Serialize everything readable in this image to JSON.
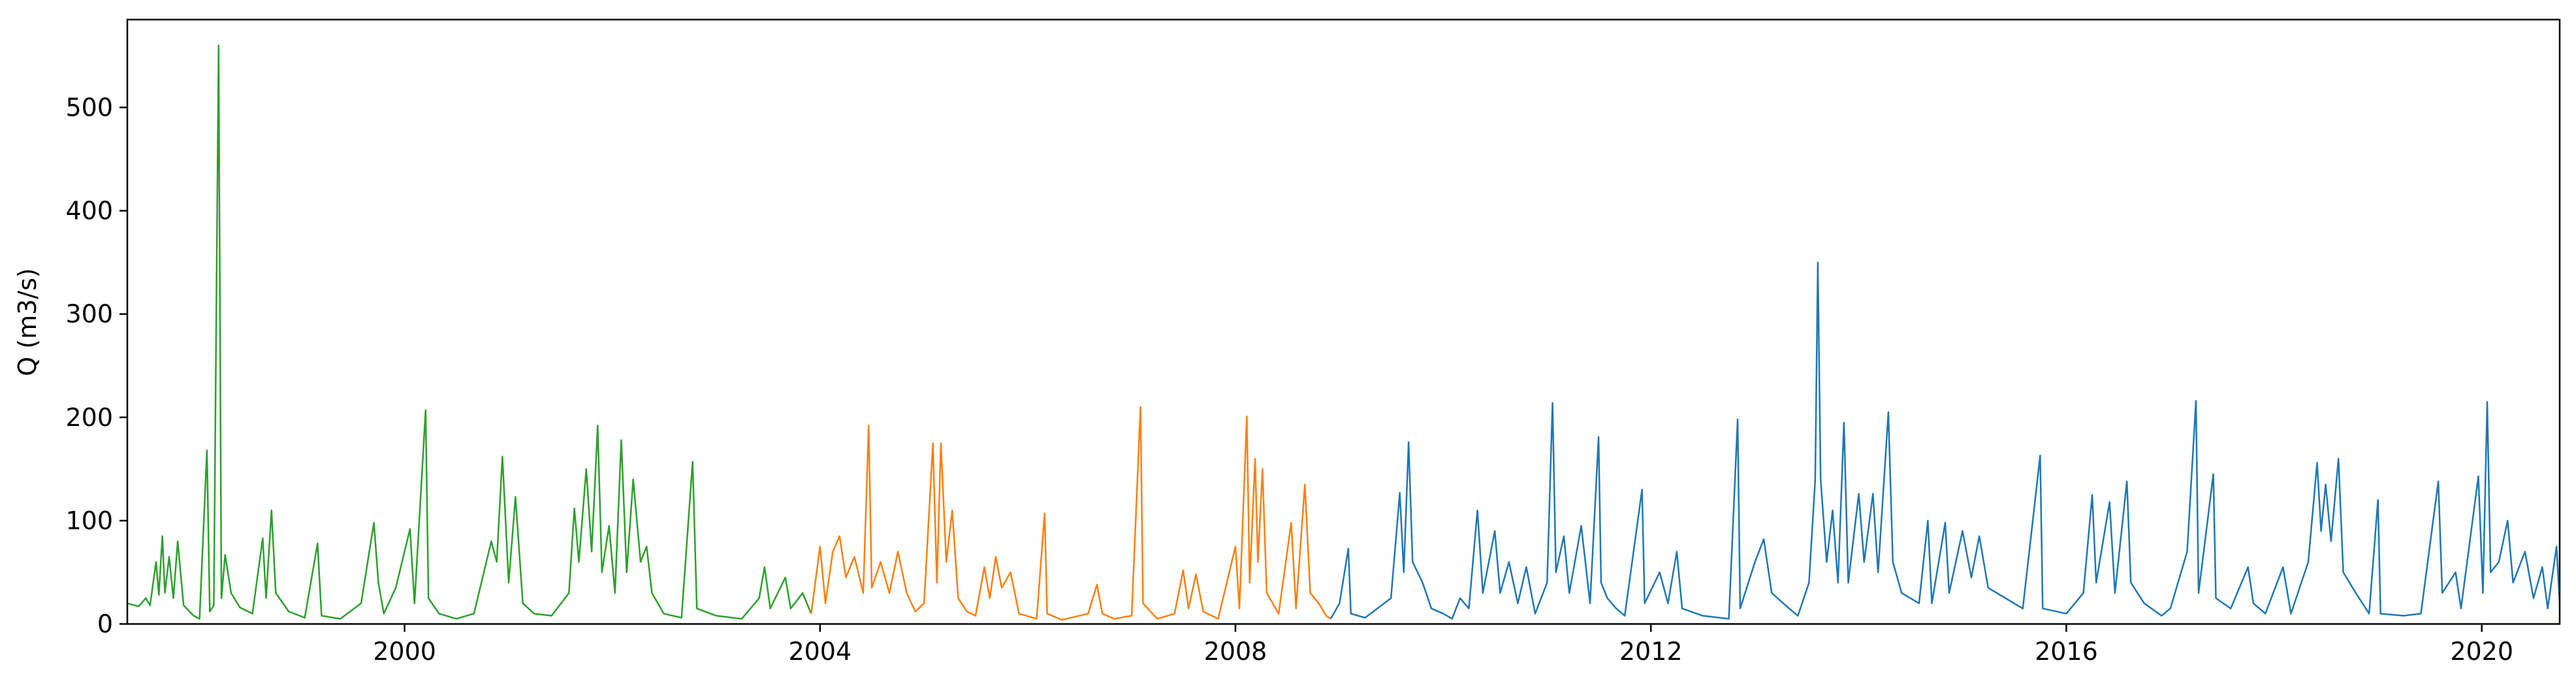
{
  "chart_data": {
    "type": "line",
    "title": "",
    "xlabel": "",
    "ylabel": "Q (m3/s)",
    "x_range": [
      "1997-05-01",
      "2020-10-01"
    ],
    "ylim": [
      0,
      585
    ],
    "grid": false,
    "x_ticks": [
      "2000",
      "2004",
      "2008",
      "2012",
      "2016",
      "2020"
    ],
    "y_ticks": [
      "0",
      "100",
      "200",
      "300",
      "400",
      "500"
    ],
    "series": [
      {
        "color": "#2ca02c",
        "points": [
          [
            "1997-05-01",
            20
          ],
          [
            "1997-06-10",
            17
          ],
          [
            "1997-07-05",
            25
          ],
          [
            "1997-07-20",
            18
          ],
          [
            "1997-08-10",
            60
          ],
          [
            "1997-08-20",
            28
          ],
          [
            "1997-09-01",
            85
          ],
          [
            "1997-09-10",
            30
          ],
          [
            "1997-09-25",
            65
          ],
          [
            "1997-10-10",
            25
          ],
          [
            "1997-10-25",
            80
          ],
          [
            "1997-11-15",
            18
          ],
          [
            "1997-12-20",
            8
          ],
          [
            "1998-01-10",
            5
          ],
          [
            "1998-02-05",
            168
          ],
          [
            "1998-02-15",
            12
          ],
          [
            "1998-03-01",
            18
          ],
          [
            "1998-03-18",
            560
          ],
          [
            "1998-03-28",
            25
          ],
          [
            "1998-04-10",
            67
          ],
          [
            "1998-05-01",
            30
          ],
          [
            "1998-06-01",
            16
          ],
          [
            "1998-07-15",
            10
          ],
          [
            "1998-08-20",
            83
          ],
          [
            "1998-09-01",
            25
          ],
          [
            "1998-09-20",
            110
          ],
          [
            "1998-10-05",
            30
          ],
          [
            "1998-11-20",
            12
          ],
          [
            "1999-01-15",
            6
          ],
          [
            "1999-03-01",
            78
          ],
          [
            "1999-03-15",
            8
          ],
          [
            "1999-05-20",
            5
          ],
          [
            "1999-08-01",
            20
          ],
          [
            "1999-09-15",
            98
          ],
          [
            "1999-10-01",
            40
          ],
          [
            "1999-10-20",
            10
          ],
          [
            "1999-12-01",
            35
          ],
          [
            "2000-01-20",
            92
          ],
          [
            "2000-02-05",
            20
          ],
          [
            "2000-03-15",
            207
          ],
          [
            "2000-03-25",
            25
          ],
          [
            "2000-05-01",
            10
          ],
          [
            "2000-07-01",
            5
          ],
          [
            "2000-09-01",
            10
          ],
          [
            "2000-11-01",
            80
          ],
          [
            "2000-11-20",
            60
          ],
          [
            "2000-12-10",
            162
          ],
          [
            "2001-01-01",
            40
          ],
          [
            "2001-01-25",
            123
          ],
          [
            "2001-02-20",
            20
          ],
          [
            "2001-04-01",
            10
          ],
          [
            "2001-06-01",
            8
          ],
          [
            "2001-08-01",
            30
          ],
          [
            "2001-08-20",
            112
          ],
          [
            "2001-09-05",
            60
          ],
          [
            "2001-10-01",
            150
          ],
          [
            "2001-10-20",
            70
          ],
          [
            "2001-11-10",
            192
          ],
          [
            "2001-11-25",
            50
          ],
          [
            "2001-12-20",
            95
          ],
          [
            "2002-01-10",
            30
          ],
          [
            "2002-02-01",
            178
          ],
          [
            "2002-02-20",
            50
          ],
          [
            "2002-03-15",
            140
          ],
          [
            "2002-04-10",
            60
          ],
          [
            "2002-05-01",
            75
          ],
          [
            "2002-05-20",
            30
          ],
          [
            "2002-07-01",
            10
          ],
          [
            "2002-09-01",
            6
          ],
          [
            "2002-10-10",
            157
          ],
          [
            "2002-10-25",
            15
          ],
          [
            "2003-01-01",
            8
          ],
          [
            "2003-04-01",
            5
          ],
          [
            "2003-06-01",
            25
          ],
          [
            "2003-06-20",
            55
          ],
          [
            "2003-07-10",
            15
          ],
          [
            "2003-09-01",
            45
          ],
          [
            "2003-09-20",
            15
          ],
          [
            "2003-11-01",
            30
          ],
          [
            "2003-12-01",
            10
          ]
        ]
      },
      {
        "color": "#ff7f0e",
        "points": [
          [
            "2003-12-01",
            10
          ],
          [
            "2004-01-01",
            75
          ],
          [
            "2004-01-20",
            20
          ],
          [
            "2004-02-15",
            70
          ],
          [
            "2004-03-10",
            85
          ],
          [
            "2004-04-01",
            45
          ],
          [
            "2004-05-01",
            65
          ],
          [
            "2004-06-01",
            30
          ],
          [
            "2004-06-20",
            192
          ],
          [
            "2004-07-01",
            35
          ],
          [
            "2004-08-01",
            60
          ],
          [
            "2004-09-01",
            30
          ],
          [
            "2004-10-01",
            70
          ],
          [
            "2004-11-01",
            30
          ],
          [
            "2004-12-01",
            12
          ],
          [
            "2005-01-01",
            20
          ],
          [
            "2005-02-01",
            175
          ],
          [
            "2005-02-15",
            40
          ],
          [
            "2005-03-01",
            175
          ],
          [
            "2005-03-20",
            60
          ],
          [
            "2005-04-10",
            110
          ],
          [
            "2005-05-01",
            25
          ],
          [
            "2005-06-01",
            12
          ],
          [
            "2005-07-01",
            8
          ],
          [
            "2005-08-01",
            55
          ],
          [
            "2005-08-20",
            25
          ],
          [
            "2005-09-10",
            65
          ],
          [
            "2005-10-01",
            35
          ],
          [
            "2005-11-01",
            50
          ],
          [
            "2005-12-01",
            10
          ],
          [
            "2006-02-01",
            5
          ],
          [
            "2006-03-01",
            107
          ],
          [
            "2006-03-10",
            10
          ],
          [
            "2006-05-01",
            4
          ],
          [
            "2006-08-01",
            10
          ],
          [
            "2006-09-01",
            38
          ],
          [
            "2006-09-20",
            10
          ],
          [
            "2006-11-01",
            5
          ],
          [
            "2007-01-01",
            8
          ],
          [
            "2007-02-01",
            210
          ],
          [
            "2007-02-10",
            20
          ],
          [
            "2007-04-01",
            5
          ],
          [
            "2007-06-01",
            10
          ],
          [
            "2007-07-01",
            52
          ],
          [
            "2007-07-20",
            15
          ],
          [
            "2007-08-15",
            48
          ],
          [
            "2007-09-10",
            12
          ],
          [
            "2007-11-01",
            5
          ],
          [
            "2008-01-01",
            75
          ],
          [
            "2008-01-15",
            15
          ],
          [
            "2008-02-10",
            201
          ],
          [
            "2008-02-20",
            40
          ],
          [
            "2008-03-10",
            160
          ],
          [
            "2008-03-20",
            60
          ],
          [
            "2008-04-05",
            150
          ],
          [
            "2008-04-20",
            30
          ],
          [
            "2008-06-01",
            10
          ],
          [
            "2008-07-15",
            98
          ],
          [
            "2008-08-01",
            15
          ],
          [
            "2008-09-01",
            135
          ],
          [
            "2008-09-20",
            30
          ],
          [
            "2008-10-20",
            20
          ],
          [
            "2008-11-15",
            8
          ],
          [
            "2008-12-01",
            5
          ]
        ]
      },
      {
        "color": "#1f77b4",
        "points": [
          [
            "2008-12-01",
            5
          ],
          [
            "2009-01-01",
            20
          ],
          [
            "2009-02-01",
            73
          ],
          [
            "2009-02-10",
            10
          ],
          [
            "2009-04-01",
            6
          ],
          [
            "2009-07-01",
            25
          ],
          [
            "2009-08-01",
            127
          ],
          [
            "2009-08-15",
            50
          ],
          [
            "2009-09-01",
            176
          ],
          [
            "2009-09-15",
            60
          ],
          [
            "2009-10-20",
            40
          ],
          [
            "2009-11-20",
            15
          ],
          [
            "2010-01-01",
            10
          ],
          [
            "2010-02-01",
            5
          ],
          [
            "2010-03-01",
            25
          ],
          [
            "2010-04-01",
            15
          ],
          [
            "2010-05-01",
            110
          ],
          [
            "2010-05-20",
            30
          ],
          [
            "2010-07-01",
            90
          ],
          [
            "2010-07-20",
            30
          ],
          [
            "2010-08-20",
            60
          ],
          [
            "2010-09-20",
            20
          ],
          [
            "2010-10-20",
            55
          ],
          [
            "2010-11-20",
            10
          ],
          [
            "2011-01-01",
            40
          ],
          [
            "2011-01-20",
            214
          ],
          [
            "2011-02-01",
            50
          ],
          [
            "2011-03-01",
            85
          ],
          [
            "2011-03-20",
            30
          ],
          [
            "2011-05-01",
            95
          ],
          [
            "2011-06-01",
            20
          ],
          [
            "2011-07-01",
            181
          ],
          [
            "2011-07-10",
            40
          ],
          [
            "2011-08-01",
            25
          ],
          [
            "2011-09-01",
            15
          ],
          [
            "2011-10-01",
            8
          ],
          [
            "2011-12-01",
            130
          ],
          [
            "2011-12-10",
            20
          ],
          [
            "2012-02-01",
            50
          ],
          [
            "2012-03-01",
            20
          ],
          [
            "2012-04-01",
            70
          ],
          [
            "2012-04-20",
            15
          ],
          [
            "2012-07-01",
            8
          ],
          [
            "2012-10-01",
            5
          ],
          [
            "2012-11-01",
            198
          ],
          [
            "2012-11-10",
            15
          ],
          [
            "2013-01-01",
            60
          ],
          [
            "2013-02-01",
            82
          ],
          [
            "2013-03-01",
            30
          ],
          [
            "2013-05-01",
            15
          ],
          [
            "2013-06-01",
            8
          ],
          [
            "2013-07-10",
            40
          ],
          [
            "2013-08-01",
            140
          ],
          [
            "2013-08-10",
            350
          ],
          [
            "2013-08-20",
            140
          ],
          [
            "2013-09-10",
            60
          ],
          [
            "2013-10-01",
            110
          ],
          [
            "2013-10-20",
            40
          ],
          [
            "2013-11-10",
            195
          ],
          [
            "2013-11-25",
            40
          ],
          [
            "2014-01-01",
            126
          ],
          [
            "2014-01-20",
            60
          ],
          [
            "2014-02-20",
            126
          ],
          [
            "2014-03-10",
            50
          ],
          [
            "2014-04-15",
            205
          ],
          [
            "2014-05-01",
            60
          ],
          [
            "2014-06-01",
            30
          ],
          [
            "2014-08-01",
            20
          ],
          [
            "2014-09-01",
            100
          ],
          [
            "2014-09-15",
            20
          ],
          [
            "2014-11-01",
            98
          ],
          [
            "2014-11-15",
            30
          ],
          [
            "2015-01-01",
            90
          ],
          [
            "2015-02-01",
            45
          ],
          [
            "2015-03-01",
            85
          ],
          [
            "2015-04-01",
            35
          ],
          [
            "2015-06-01",
            25
          ],
          [
            "2015-08-01",
            15
          ],
          [
            "2015-10-01",
            163
          ],
          [
            "2015-10-10",
            15
          ],
          [
            "2016-01-01",
            10
          ],
          [
            "2016-03-01",
            30
          ],
          [
            "2016-04-01",
            125
          ],
          [
            "2016-04-15",
            40
          ],
          [
            "2016-06-01",
            118
          ],
          [
            "2016-06-20",
            30
          ],
          [
            "2016-08-01",
            138
          ],
          [
            "2016-08-15",
            40
          ],
          [
            "2016-10-01",
            20
          ],
          [
            "2016-12-01",
            8
          ],
          [
            "2017-01-01",
            15
          ],
          [
            "2017-03-01",
            70
          ],
          [
            "2017-04-01",
            216
          ],
          [
            "2017-04-10",
            30
          ],
          [
            "2017-06-01",
            145
          ],
          [
            "2017-06-10",
            25
          ],
          [
            "2017-08-01",
            15
          ],
          [
            "2017-10-01",
            55
          ],
          [
            "2017-10-20",
            20
          ],
          [
            "2017-12-01",
            10
          ],
          [
            "2018-02-01",
            55
          ],
          [
            "2018-03-01",
            10
          ],
          [
            "2018-05-01",
            60
          ],
          [
            "2018-06-01",
            156
          ],
          [
            "2018-06-15",
            90
          ],
          [
            "2018-07-01",
            135
          ],
          [
            "2018-07-20",
            80
          ],
          [
            "2018-08-15",
            160
          ],
          [
            "2018-09-01",
            50
          ],
          [
            "2018-10-15",
            30
          ],
          [
            "2018-12-01",
            10
          ],
          [
            "2019-01-01",
            120
          ],
          [
            "2019-01-10",
            10
          ],
          [
            "2019-04-01",
            8
          ],
          [
            "2019-06-01",
            10
          ],
          [
            "2019-08-01",
            138
          ],
          [
            "2019-08-15",
            30
          ],
          [
            "2019-10-01",
            50
          ],
          [
            "2019-10-20",
            15
          ],
          [
            "2019-12-20",
            143
          ],
          [
            "2020-01-05",
            30
          ],
          [
            "2020-01-20",
            215
          ],
          [
            "2020-02-01",
            50
          ],
          [
            "2020-03-01",
            60
          ],
          [
            "2020-04-01",
            100
          ],
          [
            "2020-04-20",
            40
          ],
          [
            "2020-06-01",
            70
          ],
          [
            "2020-07-01",
            25
          ],
          [
            "2020-08-01",
            55
          ],
          [
            "2020-08-20",
            15
          ],
          [
            "2020-09-20",
            75
          ],
          [
            "2020-10-01",
            20
          ]
        ]
      }
    ]
  }
}
